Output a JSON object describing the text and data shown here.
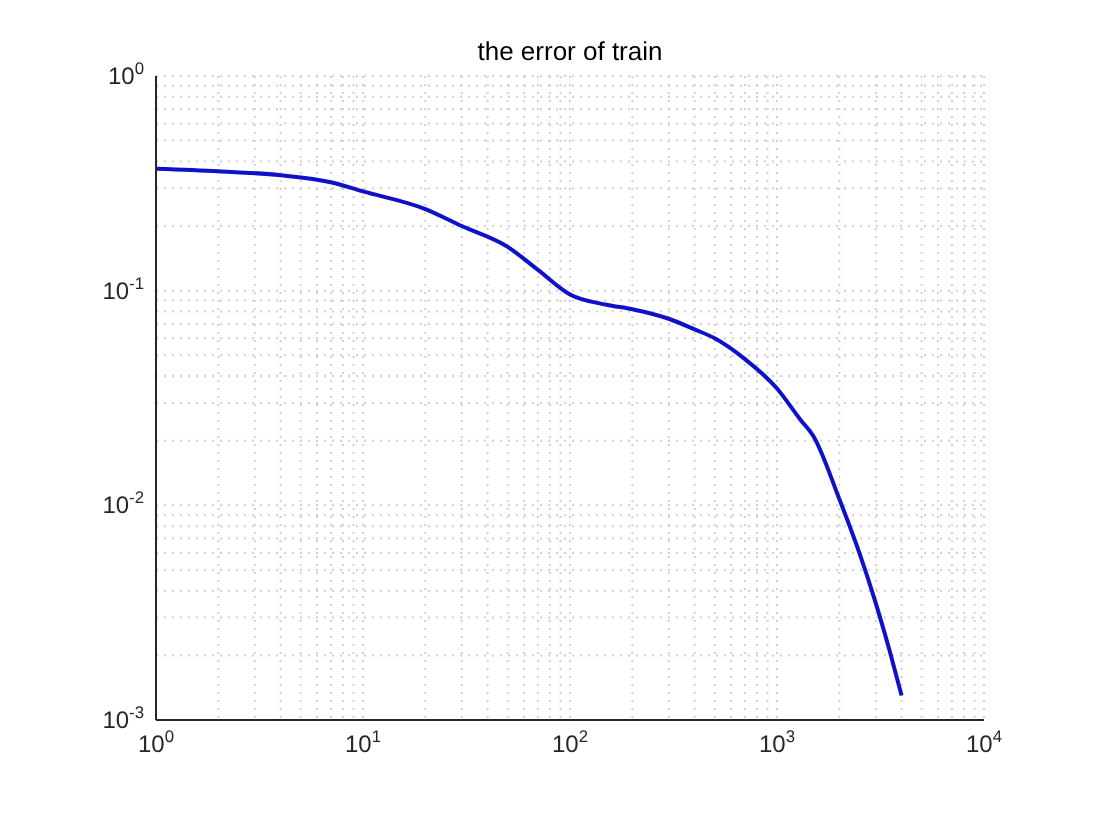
{
  "chart_data": {
    "type": "line",
    "title": "the error of train",
    "x": [
      1,
      2,
      4,
      7,
      10,
      20,
      30,
      50,
      70,
      100,
      150,
      200,
      300,
      400,
      500,
      700,
      1000,
      1300,
      1500,
      2000,
      2500,
      3000,
      3500,
      4000
    ],
    "series": [
      {
        "color": "#1010c8",
        "values": [
          0.37,
          0.36,
          0.345,
          0.32,
          0.29,
          0.24,
          0.2,
          0.16,
          0.125,
          0.096,
          0.086,
          0.082,
          0.074,
          0.066,
          0.06,
          0.048,
          0.035,
          0.025,
          0.021,
          0.0107,
          0.006,
          0.0035,
          0.0021,
          0.0013
        ]
      }
    ],
    "xlim": [
      1,
      10000
    ],
    "ylim": [
      0.001,
      1
    ],
    "xticks": [
      {
        "value": 1,
        "label": "10$^{0}$"
      },
      {
        "value": 10,
        "label": "10$^{1}$"
      },
      {
        "value": 100,
        "label": "10$^{2}$"
      },
      {
        "value": 1000,
        "label": "10$^{3}$"
      },
      {
        "value": 10000,
        "label": "10$^{4}$"
      }
    ],
    "yticks": [
      {
        "value": 0.001,
        "label": "10$^{-3}$"
      },
      {
        "value": 0.01,
        "label": "10$^{-2}$"
      },
      {
        "value": 0.1,
        "label": "10$^{-1}$"
      },
      {
        "value": 1,
        "label": "10$^{0}$"
      }
    ],
    "log": "xy",
    "grid": true,
    "marker": "none",
    "line_style": "solid"
  }
}
